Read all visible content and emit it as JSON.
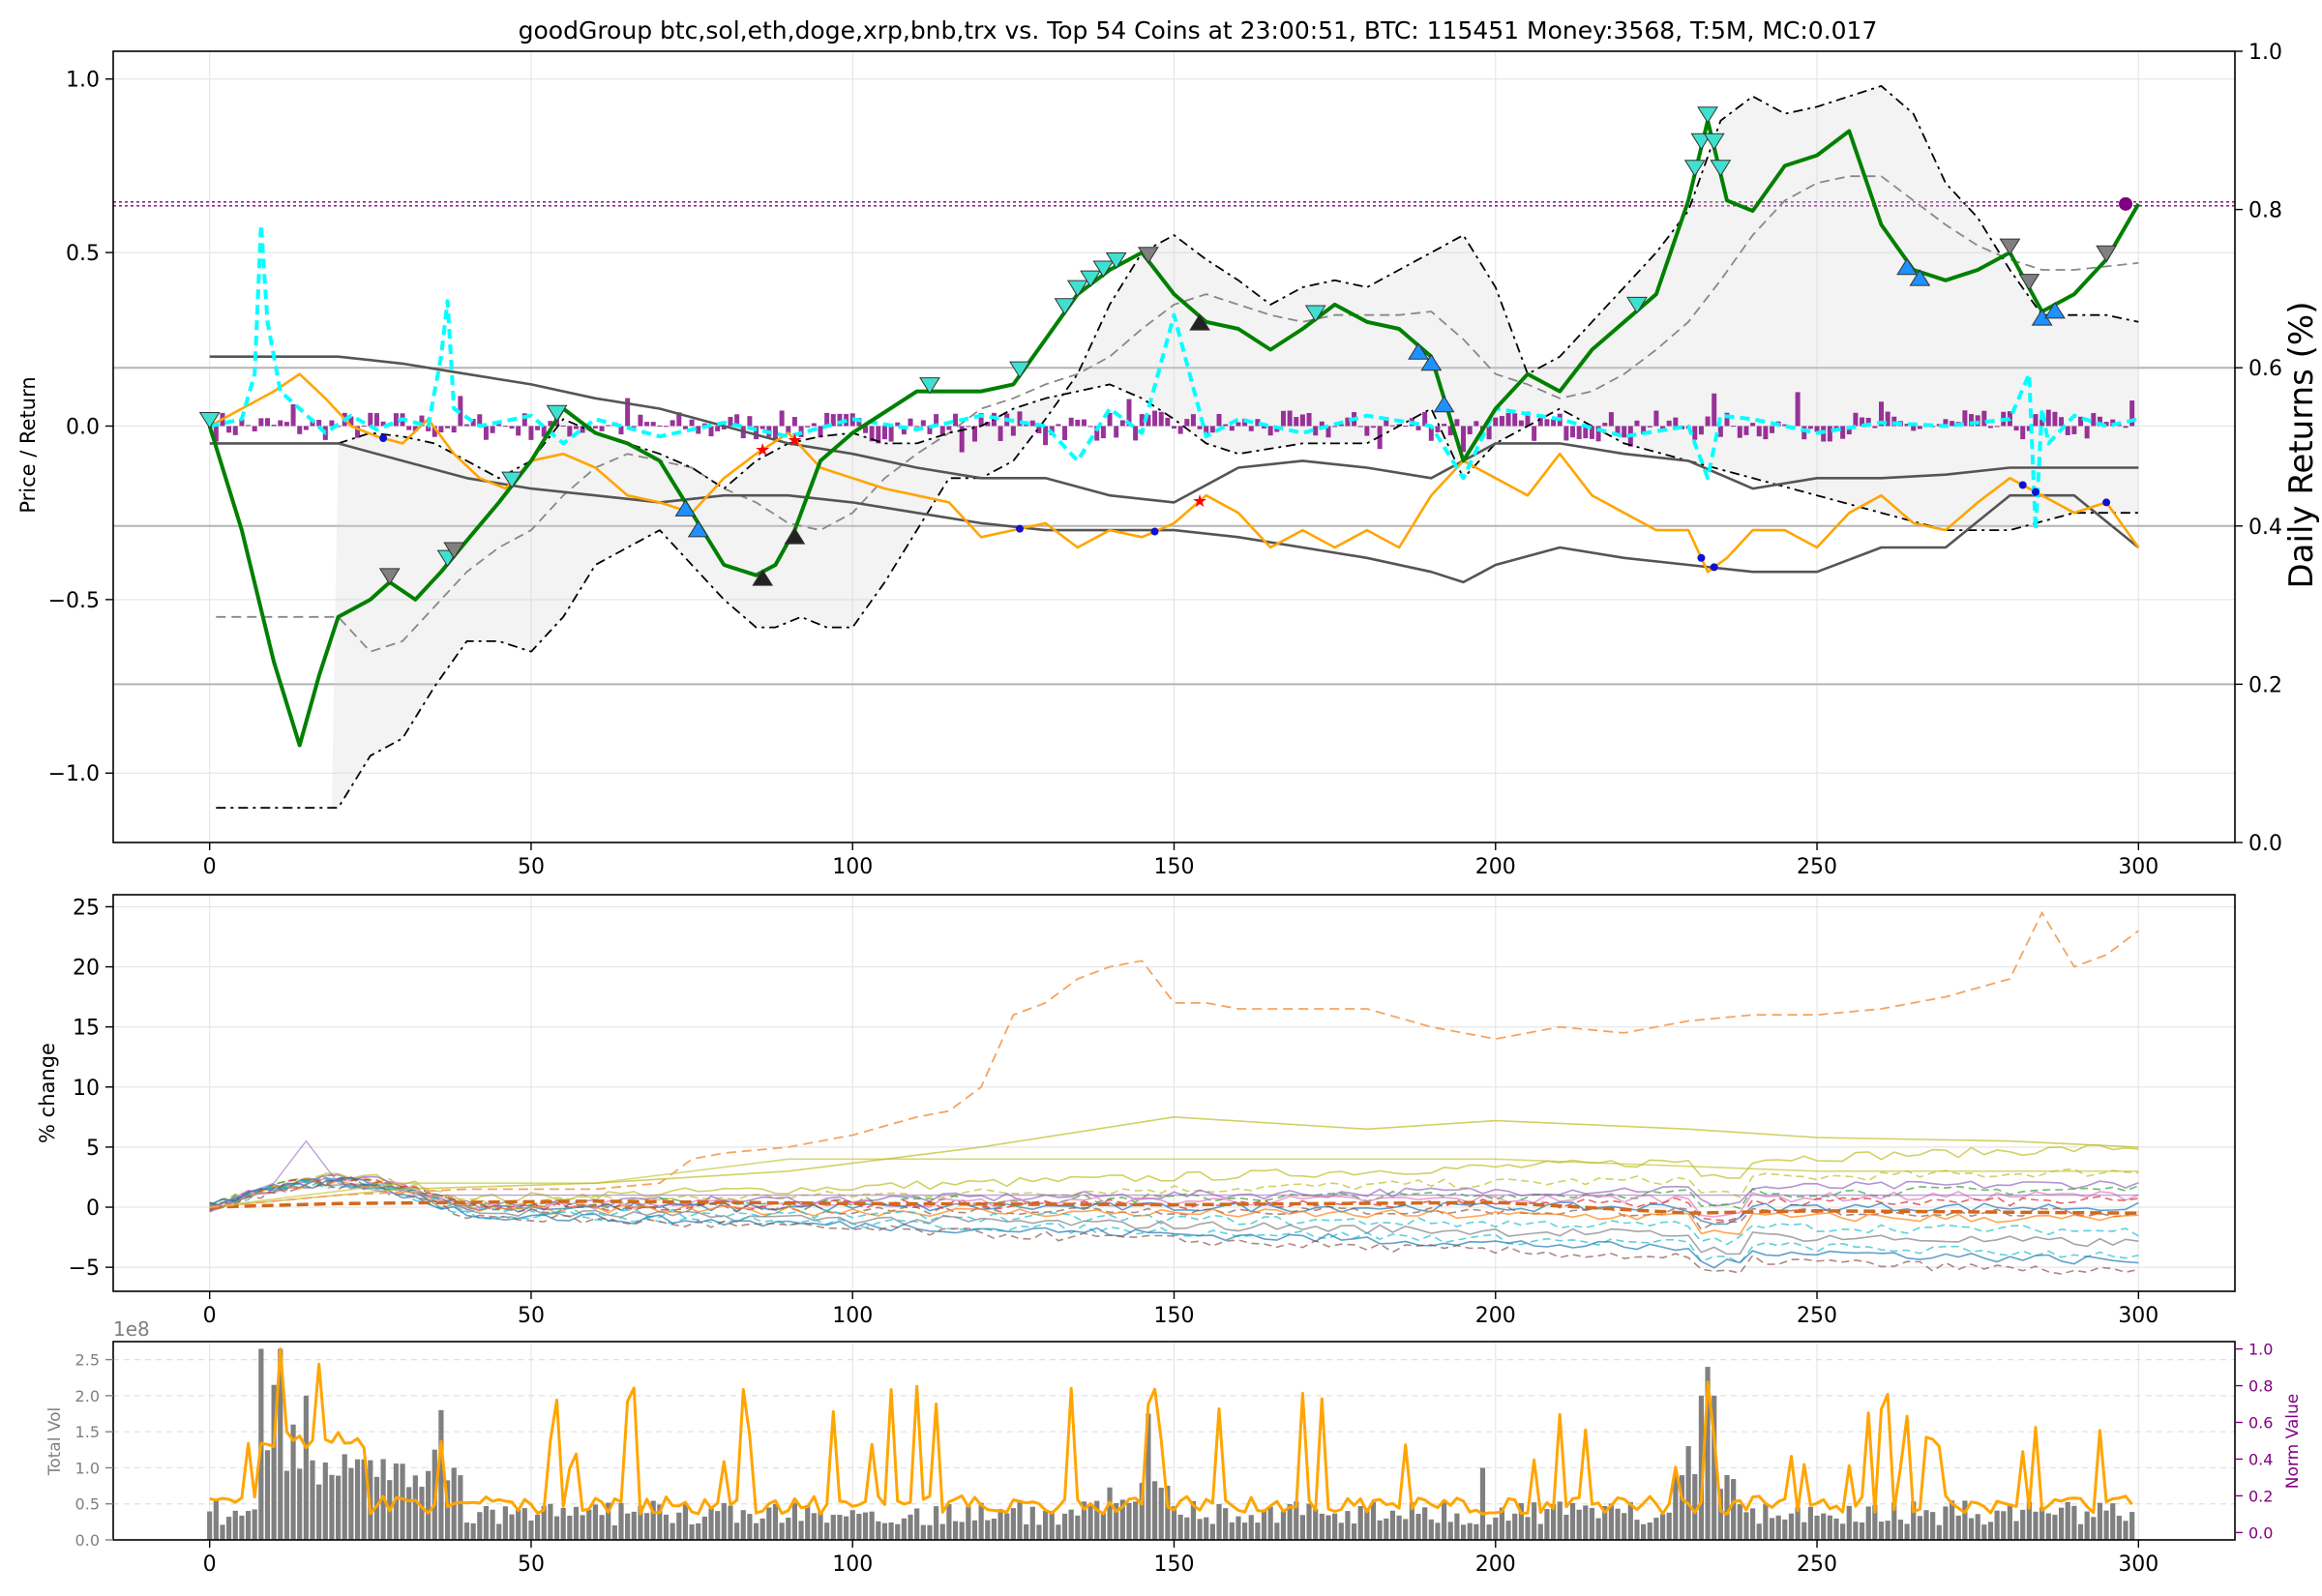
{
  "chart_data": [
    {
      "type": "line",
      "title": "goodGroup btc,sol,eth,doge,xrp,bnb,trx vs. Top 54 Coins at 23:00:51, BTC: 115451 Money:3568, T:5M, MC:0.017",
      "ylabel": "Price / Return",
      "y2label": "Daily Returns (%)",
      "xlim": [
        -15,
        315
      ],
      "ylim": [
        -1.2,
        1.08
      ],
      "y2lim": [
        0.0,
        1.0
      ],
      "xticks": [
        "0",
        "50",
        "100",
        "150",
        "200",
        "250",
        "300"
      ],
      "yticks": [
        "−1.0",
        "−0.5",
        "0.0",
        "0.5",
        "1.0"
      ],
      "y2ticks": [
        "0.0",
        "0.2",
        "0.4",
        "0.6",
        "0.8",
        "1.0"
      ],
      "grid": true,
      "reference_level": 0.64,
      "right_axis_hlines": [
        0.2,
        0.4,
        0.6
      ],
      "series": [
        {
          "color": "#008000",
          "style": "solid",
          "x": [
            0,
            5,
            10,
            14,
            17,
            20,
            25,
            28,
            32,
            36,
            40,
            45,
            50,
            55,
            60,
            65,
            70,
            75,
            80,
            85,
            88,
            91,
            95,
            100,
            110,
            120,
            125,
            130,
            135,
            140,
            145,
            150,
            155,
            160,
            165,
            170,
            175,
            180,
            185,
            190,
            195,
            200,
            205,
            210,
            215,
            220,
            225,
            230,
            233,
            236,
            240,
            245,
            250,
            255,
            260,
            265,
            270,
            275,
            280,
            285,
            290,
            295,
            300
          ],
          "y": [
            0.0,
            -0.3,
            -0.68,
            -0.92,
            -0.72,
            -0.55,
            -0.5,
            -0.45,
            -0.5,
            -0.42,
            -0.33,
            -0.22,
            -0.1,
            0.05,
            -0.02,
            -0.05,
            -0.1,
            -0.25,
            -0.4,
            -0.43,
            -0.4,
            -0.3,
            -0.1,
            -0.02,
            0.1,
            0.1,
            0.12,
            0.25,
            0.38,
            0.45,
            0.5,
            0.38,
            0.3,
            0.28,
            0.22,
            0.28,
            0.35,
            0.3,
            0.28,
            0.2,
            -0.1,
            0.05,
            0.15,
            0.1,
            0.22,
            0.3,
            0.38,
            0.65,
            0.88,
            0.65,
            0.62,
            0.75,
            0.78,
            0.85,
            0.58,
            0.45,
            0.42,
            0.45,
            0.5,
            0.33,
            0.38,
            0.48,
            0.64
          ]
        },
        {
          "color": "#ffa500",
          "style": "solid",
          "x": [
            0,
            5,
            10,
            14,
            18,
            22,
            26,
            30,
            34,
            38,
            42,
            46,
            50,
            55,
            60,
            65,
            70,
            75,
            80,
            85,
            90,
            95,
            100,
            105,
            110,
            115,
            120,
            125,
            130,
            135,
            140,
            145,
            150,
            155,
            160,
            165,
            170,
            175,
            180,
            185,
            190,
            195,
            200,
            205,
            210,
            215,
            220,
            225,
            230,
            233,
            236,
            240,
            245,
            250,
            255,
            260,
            265,
            270,
            275,
            280,
            285,
            290,
            295,
            300
          ],
          "y": [
            0.0,
            0.05,
            0.1,
            0.15,
            0.08,
            0.0,
            -0.03,
            -0.05,
            0.02,
            -0.08,
            -0.15,
            -0.18,
            -0.1,
            -0.08,
            -0.12,
            -0.2,
            -0.22,
            -0.25,
            -0.15,
            -0.08,
            -0.02,
            -0.12,
            -0.15,
            -0.18,
            -0.2,
            -0.22,
            -0.32,
            -0.3,
            -0.28,
            -0.35,
            -0.3,
            -0.32,
            -0.28,
            -0.2,
            -0.25,
            -0.35,
            -0.3,
            -0.35,
            -0.3,
            -0.35,
            -0.2,
            -0.1,
            -0.15,
            -0.2,
            -0.08,
            -0.2,
            -0.25,
            -0.3,
            -0.3,
            -0.42,
            -0.38,
            -0.3,
            -0.3,
            -0.35,
            -0.25,
            -0.2,
            -0.28,
            -0.3,
            -0.22,
            -0.15,
            -0.2,
            -0.25,
            -0.22,
            -0.35
          ]
        },
        {
          "color": "#00ffff",
          "style": "dashed",
          "x": [
            0,
            5,
            7,
            8,
            9,
            11,
            14,
            18,
            22,
            26,
            30,
            34,
            36,
            37,
            38,
            42,
            50,
            55,
            60,
            70,
            80,
            90,
            100,
            110,
            120,
            130,
            135,
            140,
            145,
            150,
            155,
            160,
            170,
            180,
            190,
            195,
            200,
            210,
            220,
            230,
            233,
            235,
            240,
            250,
            260,
            270,
            280,
            283,
            284,
            285,
            286,
            290,
            295,
            300
          ],
          "y": [
            0.0,
            0.02,
            0.15,
            0.58,
            0.3,
            0.1,
            0.05,
            -0.02,
            0.03,
            -0.01,
            0.02,
            0.0,
            0.2,
            0.36,
            0.05,
            0.0,
            0.03,
            -0.05,
            0.02,
            -0.03,
            0.01,
            -0.03,
            0.02,
            -0.01,
            0.03,
            0.0,
            -0.1,
            0.05,
            -0.02,
            0.32,
            -0.03,
            0.02,
            -0.02,
            0.03,
            0.0,
            -0.15,
            0.05,
            0.02,
            -0.03,
            0.0,
            -0.15,
            0.03,
            0.02,
            -0.02,
            0.01,
            0.0,
            0.02,
            0.15,
            -0.3,
            0.05,
            -0.05,
            0.03,
            0.0,
            0.02
          ]
        },
        {
          "color": "#555555",
          "style": "solid",
          "x": [
            0,
            20,
            30,
            40,
            50,
            60,
            70,
            80,
            90,
            100,
            110,
            120,
            130,
            140,
            150,
            160,
            170,
            180,
            190,
            200,
            210,
            220,
            230,
            240,
            250,
            260,
            270,
            280,
            290,
            300
          ],
          "y": [
            0.2,
            0.2,
            0.18,
            0.15,
            0.12,
            0.08,
            0.05,
            0.0,
            -0.05,
            -0.08,
            -0.12,
            -0.15,
            -0.15,
            -0.2,
            -0.22,
            -0.12,
            -0.1,
            -0.12,
            -0.15,
            -0.05,
            -0.05,
            -0.08,
            -0.1,
            -0.18,
            -0.15,
            -0.15,
            -0.14,
            -0.12,
            -0.12,
            -0.12
          ]
        },
        {
          "color": "#555555",
          "style": "solid",
          "x": [
            0,
            20,
            30,
            40,
            50,
            60,
            70,
            80,
            90,
            100,
            110,
            120,
            130,
            140,
            150,
            160,
            170,
            180,
            190,
            195,
            200,
            210,
            220,
            230,
            240,
            250,
            260,
            270,
            280,
            290,
            300
          ],
          "y": [
            -0.05,
            -0.05,
            -0.1,
            -0.15,
            -0.18,
            -0.2,
            -0.22,
            -0.2,
            -0.2,
            -0.22,
            -0.25,
            -0.28,
            -0.3,
            -0.3,
            -0.3,
            -0.32,
            -0.35,
            -0.38,
            -0.42,
            -0.45,
            -0.4,
            -0.35,
            -0.38,
            -0.4,
            -0.42,
            -0.42,
            -0.35,
            -0.35,
            -0.2,
            -0.2,
            -0.35
          ]
        },
        {
          "color": "#000000",
          "style": "dashdot",
          "x": [
            1,
            20,
            25,
            30,
            35,
            40,
            45,
            50,
            55,
            60,
            65,
            70,
            75,
            80,
            85,
            88,
            92,
            96,
            100,
            105,
            110,
            115,
            120,
            125,
            130,
            135,
            140,
            145,
            150,
            155,
            160,
            165,
            170,
            175,
            180,
            185,
            190,
            195,
            200,
            205,
            210,
            215,
            220,
            225,
            230,
            235,
            240,
            245,
            250,
            255,
            260,
            265,
            270,
            275,
            280,
            285,
            290,
            295,
            300
          ],
          "y": [
            -1.1,
            -1.1,
            -0.95,
            -0.9,
            -0.75,
            -0.62,
            -0.62,
            -0.65,
            -0.55,
            -0.4,
            -0.35,
            -0.3,
            -0.4,
            -0.5,
            -0.58,
            -0.58,
            -0.55,
            -0.58,
            -0.58,
            -0.45,
            -0.3,
            -0.15,
            -0.15,
            -0.1,
            0.02,
            0.15,
            0.35,
            0.5,
            0.55,
            0.48,
            0.42,
            0.35,
            0.4,
            0.42,
            0.4,
            0.45,
            0.5,
            0.55,
            0.4,
            0.15,
            0.2,
            0.3,
            0.4,
            0.5,
            0.62,
            0.88,
            0.95,
            0.9,
            0.92,
            0.95,
            0.98,
            0.9,
            0.7,
            0.6,
            0.45,
            0.32,
            0.32,
            0.32,
            0.3
          ]
        },
        {
          "color": "#000000",
          "style": "dashdot",
          "x": [
            20,
            25,
            30,
            35,
            40,
            45,
            50,
            55,
            60,
            65,
            70,
            75,
            80,
            85,
            90,
            95,
            100,
            105,
            110,
            115,
            120,
            125,
            130,
            135,
            140,
            145,
            150,
            155,
            160,
            170,
            180,
            190,
            195,
            200,
            205,
            210,
            220,
            230,
            240,
            250,
            260,
            270,
            280,
            290,
            300
          ],
          "y": [
            -0.05,
            -0.02,
            -0.03,
            -0.05,
            -0.1,
            -0.15,
            -0.1,
            0.02,
            -0.02,
            -0.05,
            -0.08,
            -0.12,
            -0.18,
            -0.1,
            -0.05,
            -0.03,
            -0.02,
            -0.05,
            -0.05,
            -0.02,
            0.0,
            0.05,
            0.08,
            0.1,
            0.12,
            0.08,
            0.02,
            -0.05,
            -0.08,
            -0.05,
            -0.05,
            0.05,
            -0.15,
            -0.05,
            0.0,
            0.05,
            -0.05,
            -0.1,
            -0.15,
            -0.2,
            -0.25,
            -0.3,
            -0.3,
            -0.25,
            -0.25
          ]
        },
        {
          "color": "#888888",
          "style": "dashed",
          "x": [
            1,
            20,
            25,
            30,
            35,
            40,
            45,
            50,
            55,
            60,
            65,
            70,
            75,
            80,
            85,
            90,
            95,
            100,
            105,
            110,
            115,
            120,
            125,
            130,
            135,
            140,
            145,
            150,
            155,
            160,
            165,
            170,
            175,
            180,
            185,
            190,
            195,
            200,
            205,
            210,
            215,
            220,
            225,
            230,
            235,
            240,
            245,
            250,
            255,
            260,
            265,
            270,
            275,
            280,
            285,
            290,
            295,
            300
          ],
          "y": [
            -0.55,
            -0.55,
            -0.65,
            -0.62,
            -0.52,
            -0.42,
            -0.35,
            -0.3,
            -0.2,
            -0.12,
            -0.08,
            -0.1,
            -0.12,
            -0.18,
            -0.22,
            -0.28,
            -0.3,
            -0.25,
            -0.15,
            -0.08,
            -0.02,
            0.05,
            0.08,
            0.12,
            0.15,
            0.2,
            0.28,
            0.35,
            0.38,
            0.35,
            0.32,
            0.3,
            0.32,
            0.32,
            0.32,
            0.33,
            0.25,
            0.15,
            0.12,
            0.08,
            0.1,
            0.15,
            0.22,
            0.3,
            0.42,
            0.55,
            0.65,
            0.7,
            0.72,
            0.72,
            0.65,
            0.58,
            0.52,
            0.48,
            0.45,
            0.45,
            0.46,
            0.47
          ]
        }
      ]
    },
    {
      "type": "line",
      "ylabel": "% change",
      "xlim": [
        -15,
        315
      ],
      "ylim": [
        -7,
        26
      ],
      "xticks": [
        "0",
        "50",
        "100",
        "150",
        "200",
        "250",
        "300"
      ],
      "yticks": [
        "−5",
        "0",
        "5",
        "10",
        "15",
        "20",
        "25"
      ],
      "grid": true,
      "highlight_series": {
        "color": "#f4a460",
        "style": "dashed",
        "x": [
          0,
          20,
          40,
          60,
          70,
          75,
          80,
          90,
          100,
          110,
          115,
          120,
          125,
          130,
          135,
          140,
          145,
          150,
          155,
          160,
          170,
          180,
          190,
          200,
          210,
          220,
          230,
          240,
          250,
          260,
          270,
          280,
          285,
          290,
          295,
          300
        ],
        "y": [
          0,
          1,
          1.5,
          1.5,
          2,
          4,
          4.5,
          5,
          6,
          7.5,
          8,
          10,
          16,
          17,
          19,
          20,
          20.5,
          17,
          17,
          16.5,
          16.5,
          16.5,
          15,
          14,
          15,
          14.5,
          15.5,
          16,
          16,
          16.5,
          17.5,
          19,
          24.5,
          20,
          21,
          23
        ]
      },
      "other_series": [
        {
          "color": "#bcbd22",
          "y_end": 5
        },
        {
          "color": "#bcbd22",
          "y_end": 3
        },
        {
          "color": "#9467bd",
          "y_end": 2
        },
        {
          "color": "#2ca02c",
          "y_end": 1.5
        },
        {
          "color": "#e377c2",
          "y_end": 1
        },
        {
          "color": "#d62728",
          "y_end": 0.5
        },
        {
          "color": "#1f77b4",
          "y_end": 0
        },
        {
          "color": "#8c564b",
          "y_end": -0.5
        },
        {
          "color": "#ff7f0e",
          "y_end": -1
        },
        {
          "color": "#17becf",
          "y_end": -2
        },
        {
          "color": "#7f7f7f",
          "y_end": -3
        },
        {
          "color": "#17becf",
          "y_end": -4
        },
        {
          "color": "#1f77b4",
          "y_end": -4.5
        },
        {
          "color": "#8c564b",
          "y_end": -5.5
        }
      ]
    },
    {
      "type": "bar",
      "exponent_label": "1e8",
      "ylabel": "Total Vol",
      "y2label": "Norm Value",
      "xlim": [
        -15,
        315
      ],
      "ylim": [
        0,
        2.75
      ],
      "y2lim": [
        -0.04,
        1.04
      ],
      "xticks": [
        "0",
        "50",
        "100",
        "150",
        "200",
        "250",
        "300"
      ],
      "yticks": [
        "0.0",
        "0.5",
        "1.0",
        "1.5",
        "2.0",
        "2.5"
      ],
      "y2ticks": [
        "0.0",
        "0.2",
        "0.4",
        "0.6",
        "0.8",
        "1.0"
      ],
      "grid": true,
      "bar_color": "#808080",
      "line_color": "#ffa500",
      "y2_color": "#800080"
    }
  ]
}
